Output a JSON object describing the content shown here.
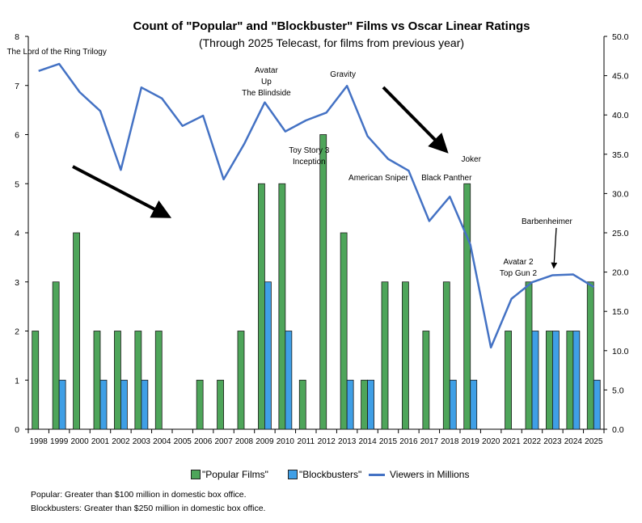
{
  "chart_data": {
    "type": "bar",
    "title": "Count of \"Popular\" and \"Blockbuster\" Films vs Oscar Linear Ratings",
    "subtitle": "(Through 2025 Telecast, for films from previous year)",
    "categories": [
      "1998",
      "1999",
      "2000",
      "2001",
      "2002",
      "2003",
      "2004",
      "2005",
      "2006",
      "2007",
      "2008",
      "2009",
      "2010",
      "2011",
      "2012",
      "2013",
      "2014",
      "2015",
      "2016",
      "2017",
      "2018",
      "2019",
      "2020",
      "2021",
      "2022",
      "2023",
      "2024",
      "2025"
    ],
    "series": [
      {
        "name": "\"Popular Films\"",
        "type": "bar",
        "axis": "left",
        "color": "#4ea55a",
        "values": [
          2,
          3,
          4,
          2,
          2,
          2,
          2,
          0,
          1,
          1,
          2,
          5,
          5,
          1,
          6,
          4,
          1,
          3,
          3,
          2,
          3,
          5,
          0,
          2,
          3,
          2,
          2,
          3
        ]
      },
      {
        "name": "\"Blockbusters\"",
        "type": "bar",
        "axis": "left",
        "color": "#3f9fe6",
        "values": [
          0,
          1,
          0,
          1,
          1,
          1,
          0,
          0,
          0,
          0,
          0,
          3,
          2,
          0,
          0,
          1,
          1,
          0,
          0,
          0,
          1,
          1,
          0,
          0,
          2,
          2,
          2,
          1
        ]
      },
      {
        "name": "Viewers in Millions",
        "type": "line",
        "axis": "right",
        "color": "#4472c4",
        "values": [
          45.6,
          46.5,
          42.9,
          40.5,
          33.0,
          43.5,
          42.1,
          38.6,
          39.9,
          31.8,
          36.3,
          41.6,
          37.9,
          39.3,
          40.3,
          43.7,
          37.3,
          34.4,
          32.9,
          26.5,
          29.6,
          23.5,
          10.4,
          16.6,
          18.7,
          19.6,
          19.7,
          18.1
        ]
      }
    ],
    "ylim_left": [
      0,
      8
    ],
    "left_ticks": [
      "0",
      "1",
      "2",
      "3",
      "4",
      "5",
      "6",
      "7",
      "8"
    ],
    "ylim_right": [
      0,
      50
    ],
    "right_ticks": [
      "0.0",
      "5.0",
      "10.0",
      "15.0",
      "20.0",
      "25.0",
      "30.0",
      "35.0",
      "40.0",
      "45.0",
      "50.0"
    ],
    "grid": false,
    "legend_position": "bottom",
    "annotations": [
      {
        "lines": [
          "The Lord of the Ring Trilogy"
        ],
        "year": "1999"
      },
      {
        "lines": [
          "Avatar",
          "Up",
          "The Blindside"
        ],
        "year": "2009"
      },
      {
        "lines": [
          "Toy Story 3",
          "Inception"
        ],
        "year": "2011"
      },
      {
        "lines": [
          "Gravity"
        ],
        "year": "2013"
      },
      {
        "lines": [
          "American Sniper"
        ],
        "year": "2015"
      },
      {
        "lines": [
          "Black Panther"
        ],
        "year": "2018"
      },
      {
        "lines": [
          "Joker"
        ],
        "year": "2019"
      },
      {
        "lines": [
          "Avatar 2",
          "Top Gun 2"
        ],
        "year": "2022"
      },
      {
        "lines": [
          "Barbenheimer"
        ],
        "year": "2023"
      }
    ]
  },
  "footnotes": {
    "popular": "Popular: Greater than $100 million in domestic box office.",
    "blockbusters": "Blockbusters: Greater than $250 million in domestic box office."
  }
}
